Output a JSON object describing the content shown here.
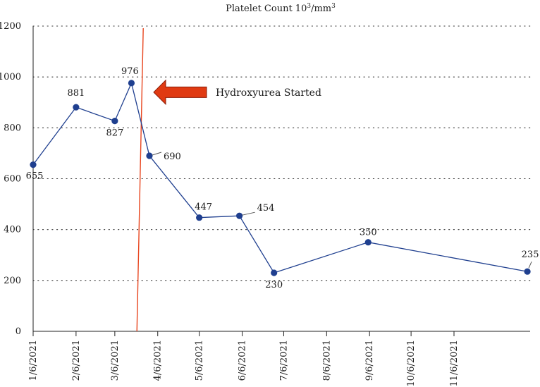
{
  "chart_data": {
    "type": "line",
    "title": "Platelet Count 10",
    "title_superscript": "3",
    "title_unit": "/mm",
    "title_unit_superscript": "3",
    "xlabel": "",
    "ylabel": "",
    "ylim": [
      0,
      1200
    ],
    "yticks": [
      0,
      200,
      400,
      600,
      800,
      1000,
      1200
    ],
    "xlim": [
      "2021-01-06",
      "2021-12-31"
    ],
    "xticks": [
      {
        "date": "2021-01-06",
        "label": "1/6/2021"
      },
      {
        "date": "2021-02-06",
        "label": "2/6/2021"
      },
      {
        "date": "2021-03-06",
        "label": "3/6/2021"
      },
      {
        "date": "2021-04-06",
        "label": "4/6/2021"
      },
      {
        "date": "2021-05-06",
        "label": "5/6/2021"
      },
      {
        "date": "2021-06-06",
        "label": "6/6/2021"
      },
      {
        "date": "2021-07-06",
        "label": "7/6/2021"
      },
      {
        "date": "2021-08-06",
        "label": "8/6/2021"
      },
      {
        "date": "2021-09-06",
        "label": "9/6/2021"
      },
      {
        "date": "2021-10-06",
        "label": "10/6/2021"
      },
      {
        "date": "2021-11-06",
        "label": "11/6/2021"
      }
    ],
    "grid": {
      "horizontal": true,
      "style": "dotted"
    },
    "legend": "none",
    "series": [
      {
        "color": "#1f3f8f",
        "points": [
          {
            "date": "2021-01-06",
            "value": 655,
            "label": "655"
          },
          {
            "date": "2021-02-06",
            "value": 881,
            "label": "881"
          },
          {
            "date": "2021-03-06",
            "value": 827,
            "label": "827"
          },
          {
            "date": "2021-03-18",
            "value": 976,
            "label": "976"
          },
          {
            "date": "2021-03-31",
            "value": 690,
            "label": "690"
          },
          {
            "date": "2021-05-06",
            "value": 447,
            "label": "447"
          },
          {
            "date": "2021-06-04",
            "value": 454,
            "label": "454"
          },
          {
            "date": "2021-06-29",
            "value": 230,
            "label": "230"
          },
          {
            "date": "2021-09-05",
            "value": 350,
            "label": "350"
          },
          {
            "date": "2021-12-29",
            "value": 235,
            "label": "235"
          }
        ]
      }
    ],
    "annotations": [
      {
        "type": "vertical-line",
        "date": "2021-03-24",
        "color": "#e8451e"
      },
      {
        "type": "arrow",
        "text": "Hydroxyurea Started",
        "value": 940,
        "color": "#e03a12"
      }
    ]
  }
}
